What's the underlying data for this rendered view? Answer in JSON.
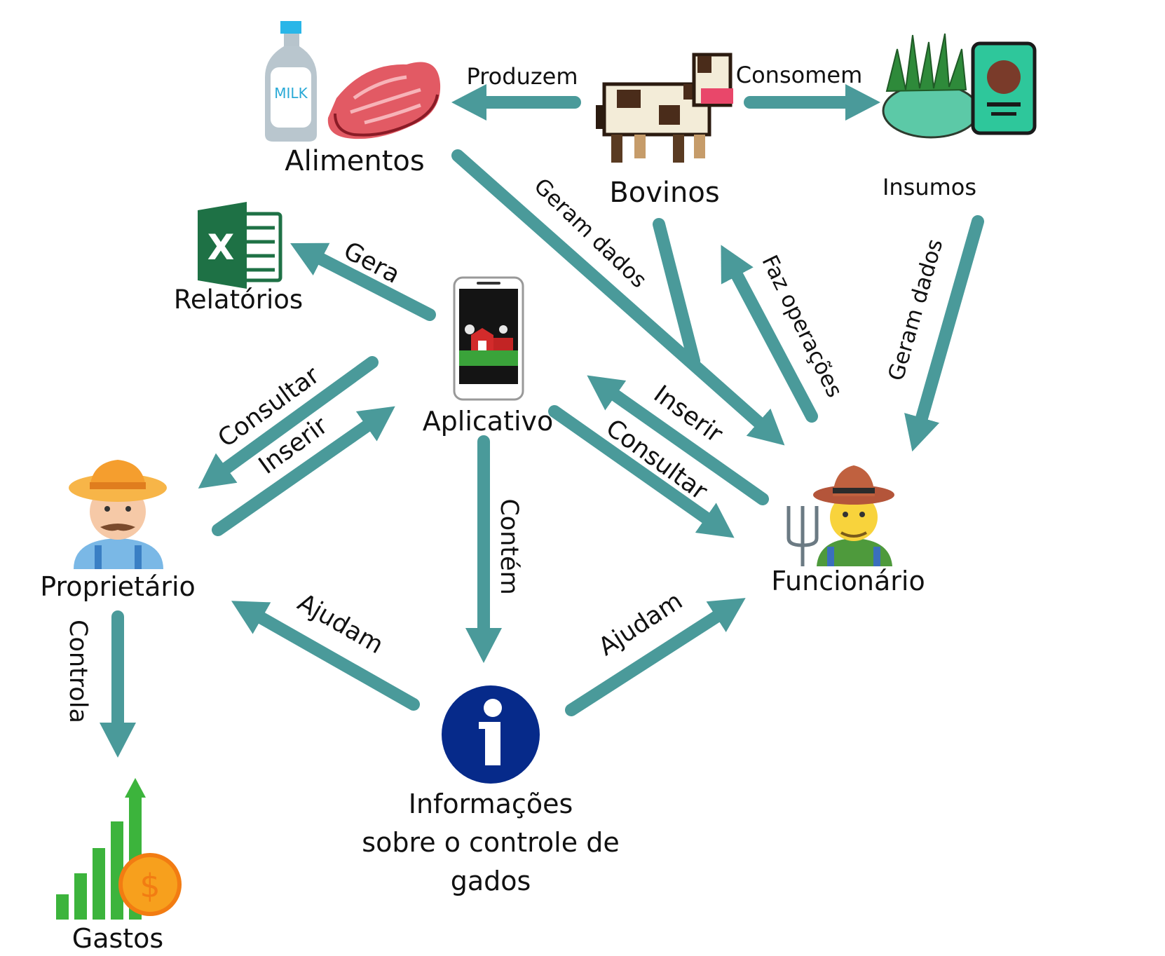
{
  "colors": {
    "arrow": "#4a9a9a",
    "info_circle": "#062a8a",
    "text": "#111111"
  },
  "nodes": {
    "alimentos": {
      "label": "Alimentos",
      "icons": [
        "milk-bottle-icon",
        "steak-icon"
      ],
      "milk_text": "MILK"
    },
    "bovinos": {
      "label": "Bovinos",
      "icon": "cow-icon"
    },
    "insumos": {
      "label": "Insumos",
      "icons": [
        "grass-icon",
        "feed-bag-icon"
      ]
    },
    "relatorios": {
      "label": "Relatórios",
      "icon": "excel-icon",
      "icon_letter": "X"
    },
    "aplicativo": {
      "label": "Aplicativo",
      "icon": "smartphone-farm-icon"
    },
    "proprietario": {
      "label": "Proprietário",
      "icon": "farmer-owner-icon"
    },
    "funcionario": {
      "label": "Funcionário",
      "icon": "farm-worker-icon"
    },
    "informacoes": {
      "label_lines": [
        "Informações",
        "sobre o controle de",
        "gados"
      ],
      "icon": "info-icon",
      "icon_letter": "i"
    },
    "gastos": {
      "label": "Gastos",
      "icon": "expenses-chart-icon",
      "coin_symbol": "$"
    }
  },
  "edges": {
    "produzem": "Produzem",
    "consomem": "Consomem",
    "geram_dados_alimentos": "Geram dados",
    "geram_dados_insumos": "Geram dados",
    "faz_operacoes": "Faz operações",
    "gera": "Gera",
    "consultar_prop": "Consultar",
    "inserir_prop": "Inserir",
    "inserir_func": "Inserir",
    "consultar_func": "Consultar",
    "contem": "Contém",
    "ajudam_prop": "Ajudam",
    "ajudam_func": "Ajudam",
    "controla": "Controla"
  }
}
